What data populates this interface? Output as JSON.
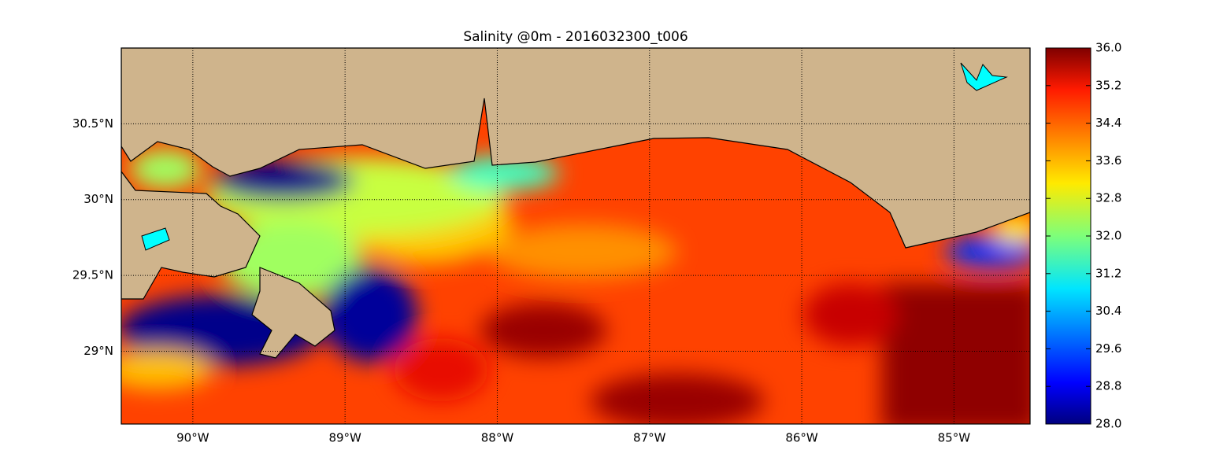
{
  "chart_data": {
    "type": "map",
    "title": "Salinity @0m - 2016032300_t006",
    "xlim": [
      -90.47,
      -84.5
    ],
    "ylim": [
      28.52,
      31.0
    ],
    "xticks": [
      {
        "value": -90,
        "label": "90°W"
      },
      {
        "value": -89,
        "label": "89°W"
      },
      {
        "value": -88,
        "label": "88°W"
      },
      {
        "value": -87,
        "label": "87°W"
      },
      {
        "value": -86,
        "label": "86°W"
      },
      {
        "value": -85,
        "label": "85°W"
      }
    ],
    "yticks": [
      {
        "value": 29,
        "label": "29°N"
      },
      {
        "value": 29.5,
        "label": "29.5°N"
      },
      {
        "value": 30,
        "label": "30°N"
      },
      {
        "value": 30.5,
        "label": "30.5°N"
      }
    ],
    "grid": true,
    "colorbar": {
      "lim": [
        28,
        36
      ],
      "ticks": [
        {
          "value": 28,
          "label": "28.0"
        },
        28.8,
        29.6,
        30.4,
        31.2,
        {
          "value": 32,
          "label": "32.0"
        },
        32.8,
        33.6,
        34.4,
        35.2,
        {
          "value": 36,
          "label": "36.0"
        }
      ]
    }
  }
}
